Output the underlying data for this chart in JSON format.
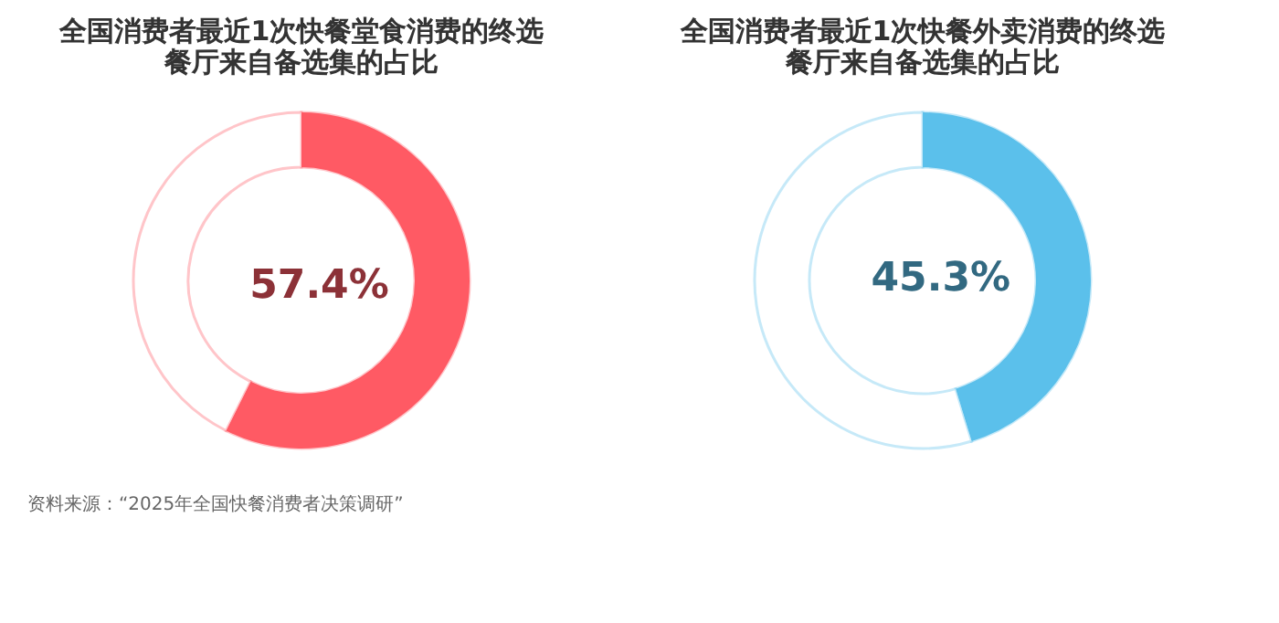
{
  "chart_data": [
    {
      "type": "donut",
      "title": "全国消费者最近1次快餐堂食消费的终选餐厅来自备选集的占比",
      "categories": [
        null,
        null
      ],
      "values": [
        57.4,
        42.6
      ],
      "colors": [
        "#ff5a64",
        "#ffffff"
      ],
      "value_labels": [
        "57.4%",
        null
      ],
      "legend": false,
      "annotations": [
        "资料来源：“2025年全国快餐消费者决策调研”"
      ]
    },
    {
      "type": "donut",
      "title": "全国消费者最近1次快餐外卖消费的终选餐厅来自备选集的占比",
      "categories": [
        null,
        null
      ],
      "values": [
        45.3,
        54.7
      ],
      "colors": [
        "#5bc0eb",
        "#ffffff"
      ],
      "value_labels": [
        "45.3%",
        null
      ],
      "legend": false
    }
  ]
}
